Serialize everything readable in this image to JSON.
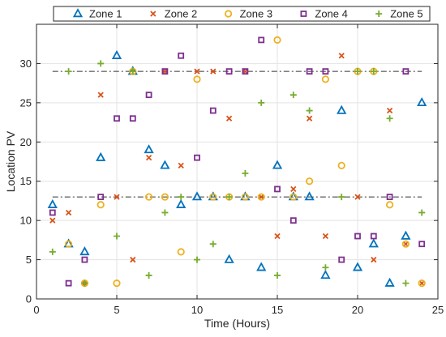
{
  "chart_data": {
    "type": "scatter",
    "title": "",
    "xlabel": "Time (Hours)",
    "ylabel": "Location PV",
    "xlim": [
      0,
      25
    ],
    "ylim": [
      0,
      35
    ],
    "xticks": [
      0,
      5,
      10,
      15,
      20,
      25
    ],
    "yticks": [
      0,
      5,
      10,
      15,
      20,
      25,
      30
    ],
    "grid": true,
    "legend_position": "top",
    "reference_lines": [
      {
        "y": 29,
        "style": "dash-dot",
        "color": "#333333"
      },
      {
        "y": 13,
        "style": "dash-dot",
        "color": "#333333"
      }
    ],
    "series": [
      {
        "name": "Zone 1",
        "marker": "triangle",
        "color": "#0072BD",
        "points": [
          [
            1,
            12
          ],
          [
            2,
            7
          ],
          [
            3,
            6
          ],
          [
            4,
            18
          ],
          [
            5,
            31
          ],
          [
            6,
            29
          ],
          [
            7,
            19
          ],
          [
            8,
            17
          ],
          [
            9,
            12
          ],
          [
            10,
            13
          ],
          [
            11,
            13
          ],
          [
            12,
            5
          ],
          [
            13,
            13
          ],
          [
            14,
            4
          ],
          [
            15,
            17
          ],
          [
            16,
            13
          ],
          [
            17,
            13
          ],
          [
            18,
            3
          ],
          [
            19,
            24
          ],
          [
            20,
            4
          ],
          [
            21,
            7
          ],
          [
            22,
            2
          ],
          [
            23,
            8
          ],
          [
            24,
            25
          ]
        ]
      },
      {
        "name": "Zone 2",
        "marker": "x",
        "color": "#D95319",
        "points": [
          [
            1,
            10
          ],
          [
            2,
            11
          ],
          [
            3,
            2
          ],
          [
            4,
            26
          ],
          [
            5,
            13
          ],
          [
            6,
            5
          ],
          [
            7,
            18
          ],
          [
            8,
            29
          ],
          [
            9,
            17
          ],
          [
            10,
            29
          ],
          [
            11,
            29
          ],
          [
            12,
            23
          ],
          [
            13,
            29
          ],
          [
            14,
            13
          ],
          [
            15,
            8
          ],
          [
            16,
            14
          ],
          [
            17,
            23
          ],
          [
            18,
            8
          ],
          [
            19,
            31
          ],
          [
            20,
            13
          ],
          [
            21,
            5
          ],
          [
            22,
            24
          ],
          [
            23,
            7
          ],
          [
            24,
            2
          ]
        ]
      },
      {
        "name": "Zone 3",
        "marker": "circle",
        "color": "#EDB120",
        "points": [
          [
            2,
            7
          ],
          [
            3,
            2
          ],
          [
            4,
            12
          ],
          [
            5,
            2
          ],
          [
            6,
            29
          ],
          [
            7,
            13
          ],
          [
            8,
            13
          ],
          [
            9,
            6
          ],
          [
            10,
            28
          ],
          [
            11,
            13
          ],
          [
            12,
            13
          ],
          [
            13,
            13
          ],
          [
            14,
            13
          ],
          [
            15,
            33
          ],
          [
            16,
            13
          ],
          [
            17,
            15
          ],
          [
            18,
            28
          ],
          [
            19,
            17
          ],
          [
            20,
            29
          ],
          [
            21,
            29
          ],
          [
            22,
            12
          ],
          [
            23,
            7
          ],
          [
            24,
            2
          ]
        ]
      },
      {
        "name": "Zone 4",
        "marker": "square",
        "color": "#7E2F8E",
        "points": [
          [
            1,
            11
          ],
          [
            2,
            2
          ],
          [
            3,
            5
          ],
          [
            4,
            13
          ],
          [
            5,
            23
          ],
          [
            6,
            23
          ],
          [
            7,
            26
          ],
          [
            8,
            29
          ],
          [
            9,
            31
          ],
          [
            10,
            18
          ],
          [
            11,
            24
          ],
          [
            12,
            29
          ],
          [
            13,
            29
          ],
          [
            14,
            33
          ],
          [
            15,
            14
          ],
          [
            16,
            10
          ],
          [
            17,
            29
          ],
          [
            18,
            29
          ],
          [
            19,
            5
          ],
          [
            20,
            8
          ],
          [
            21,
            8
          ],
          [
            22,
            13
          ],
          [
            23,
            29
          ],
          [
            24,
            7
          ]
        ]
      },
      {
        "name": "Zone 5",
        "marker": "plus",
        "color": "#77AC30",
        "points": [
          [
            1,
            6
          ],
          [
            2,
            29
          ],
          [
            3,
            2
          ],
          [
            4,
            30
          ],
          [
            5,
            8
          ],
          [
            6,
            29
          ],
          [
            7,
            3
          ],
          [
            8,
            11
          ],
          [
            9,
            13
          ],
          [
            10,
            5
          ],
          [
            11,
            7
          ],
          [
            12,
            13
          ],
          [
            13,
            16
          ],
          [
            14,
            25
          ],
          [
            15,
            3
          ],
          [
            16,
            26
          ],
          [
            17,
            24
          ],
          [
            18,
            4
          ],
          [
            19,
            13
          ],
          [
            20,
            29
          ],
          [
            21,
            29
          ],
          [
            22,
            23
          ],
          [
            23,
            2
          ],
          [
            24,
            11
          ]
        ]
      }
    ]
  }
}
